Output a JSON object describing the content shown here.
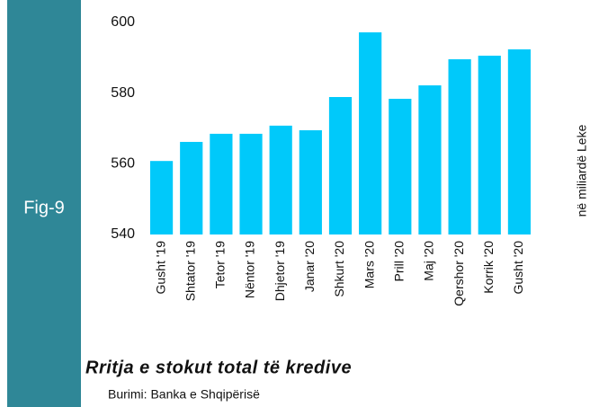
{
  "chart_data": {
    "type": "bar",
    "figure_label": "Fig-9",
    "title": "Rritja e stokut total të kredive",
    "source": "Burimi: Banka e Shqipërisë",
    "y_label": "në miliardë Leke",
    "categories": [
      "Gusht '19",
      "Shtator '19",
      "Tetor '19",
      "Nëntor '19",
      "Dhjetor '19",
      "Janar '20",
      "Shkurt '20",
      "Mars '20",
      "Prill '20",
      "Maj '20",
      "Qershor '20",
      "Korrik '20",
      "Gusht '20"
    ],
    "values": [
      560.8,
      566.2,
      568.5,
      568.5,
      570.8,
      569.5,
      578.9,
      597.2,
      578.4,
      582.2,
      589.6,
      590.6,
      592.4
    ],
    "color": "#00c9fa",
    "ylim": [
      540,
      600
    ],
    "yticks": [
      540,
      560,
      580,
      600
    ],
    "grid": false
  }
}
